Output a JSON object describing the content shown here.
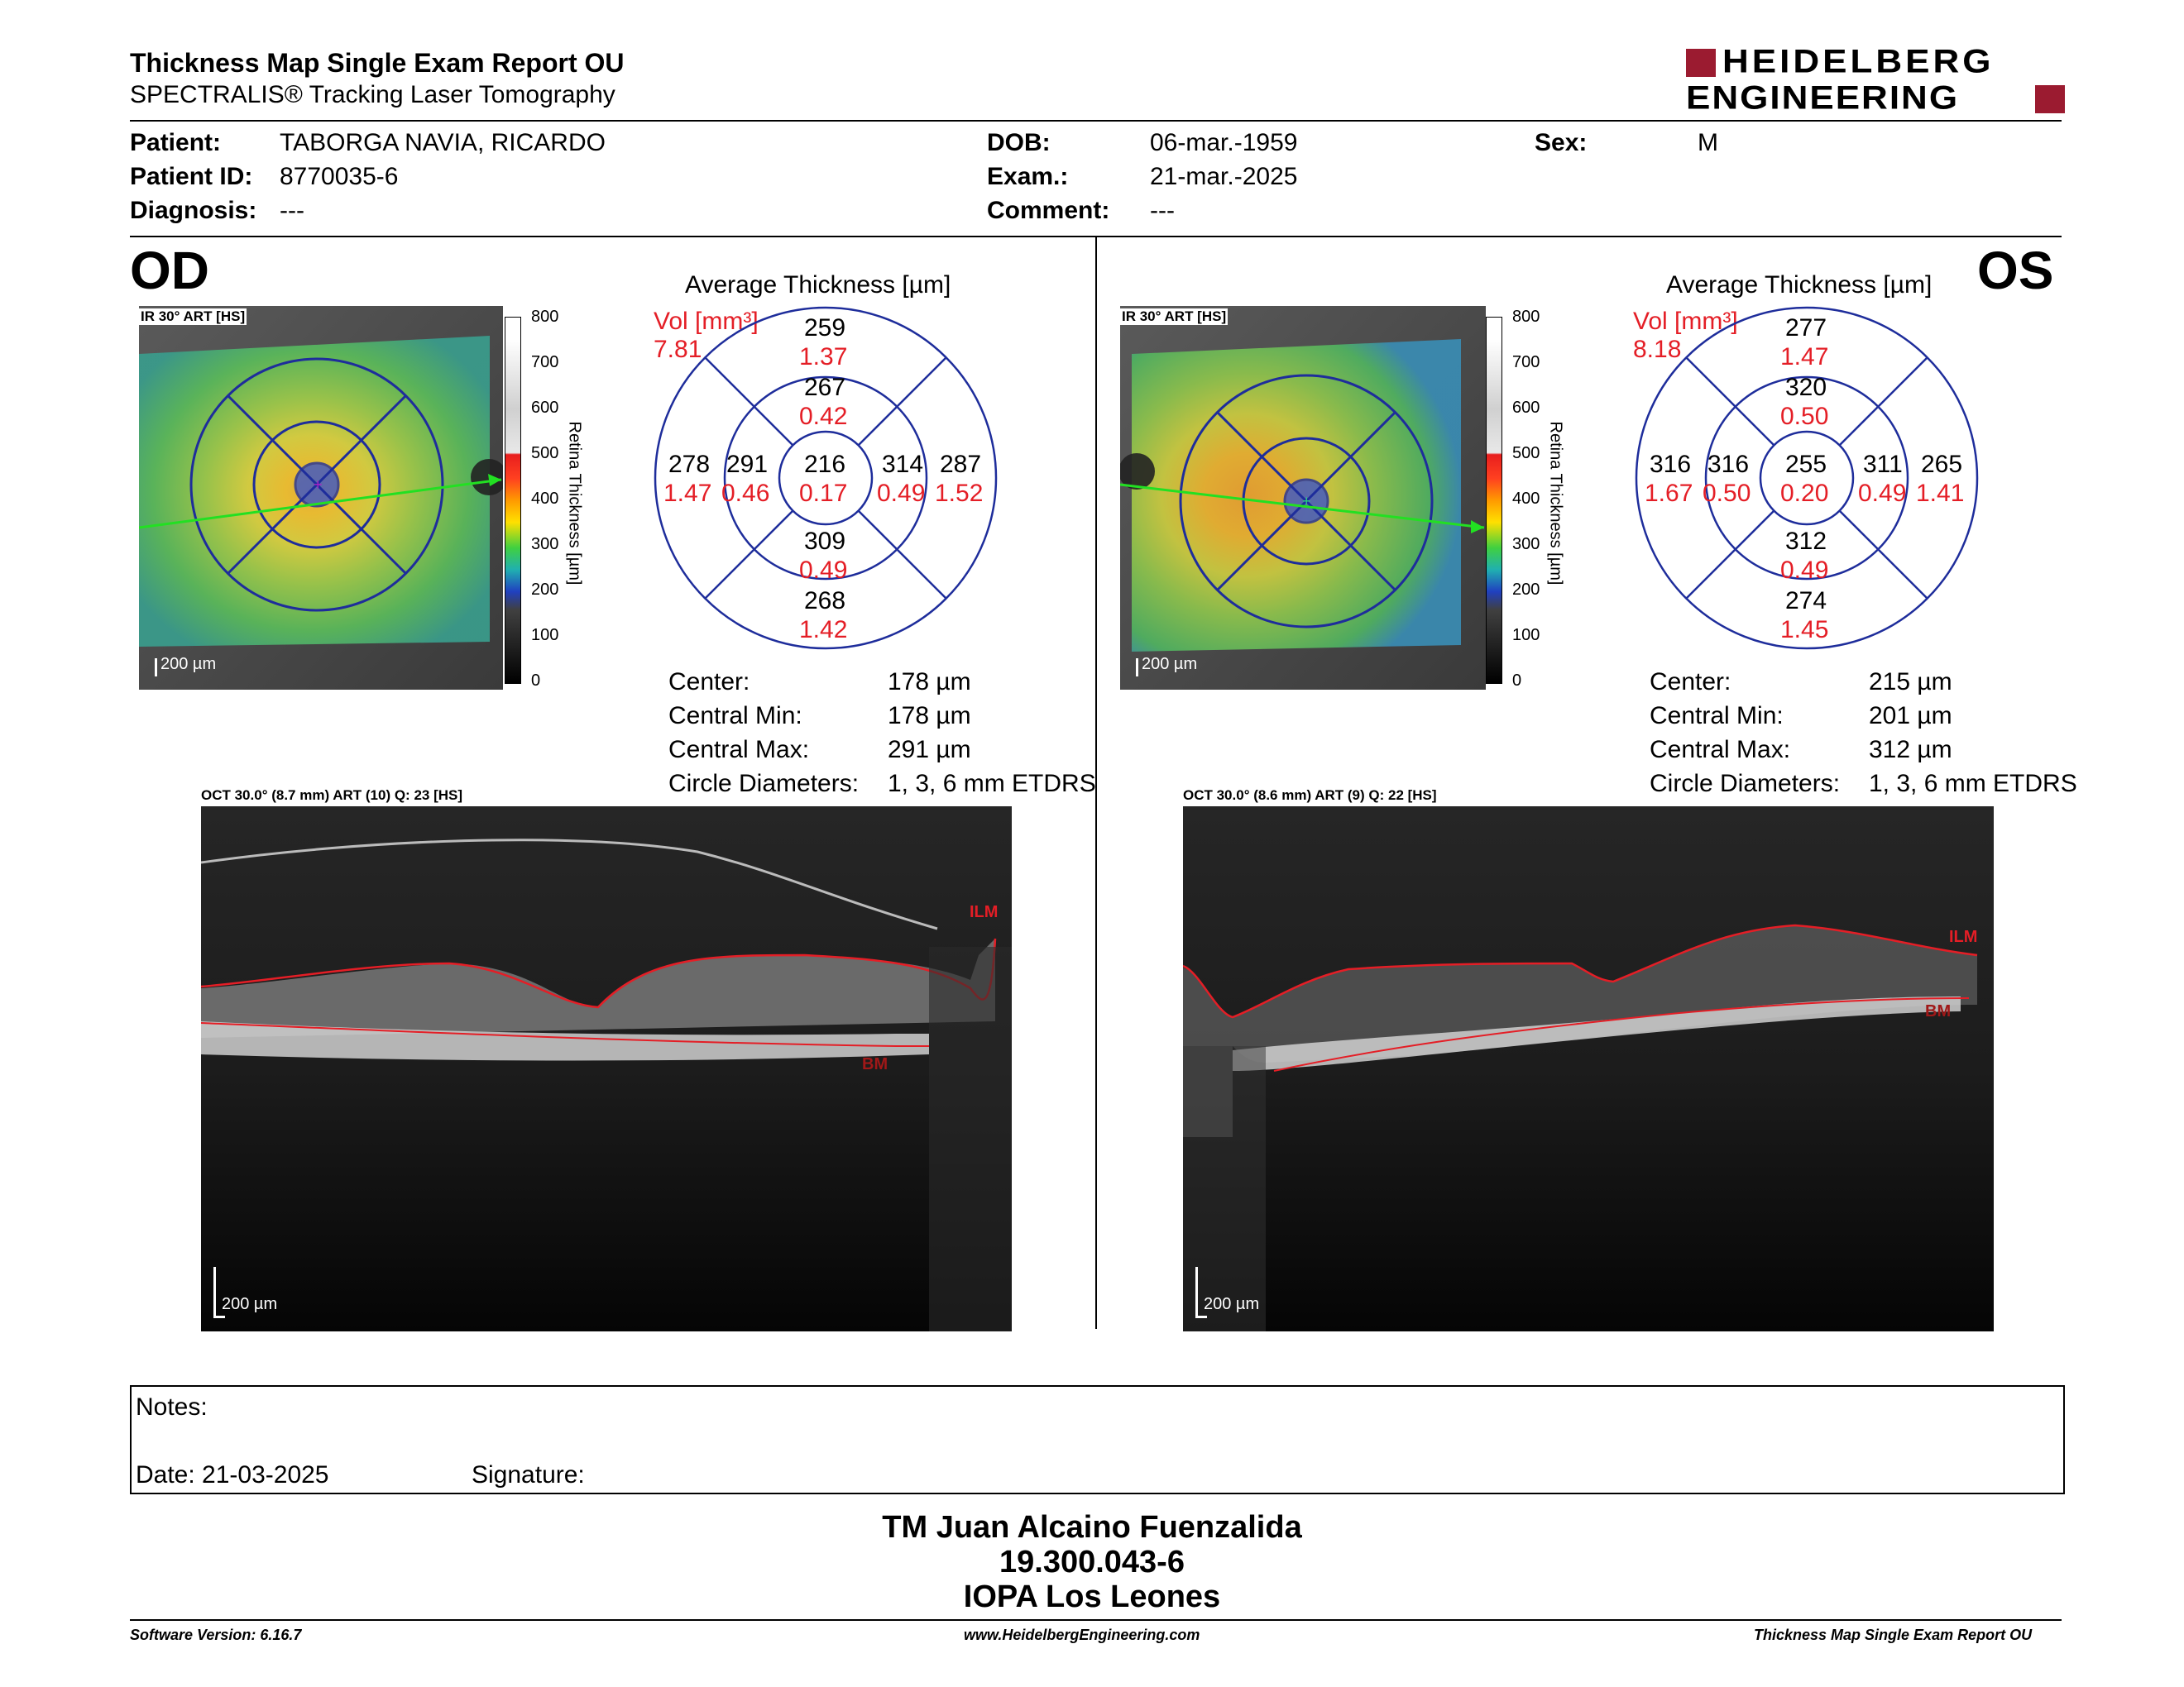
{
  "header": {
    "title": "Thickness Map Single Exam Report OU",
    "subtitle": "SPECTRALIS® Tracking Laser Tomography",
    "logo_line1": "HEIDELBERG",
    "logo_line2": "ENGINEERING"
  },
  "patient": {
    "patient_label": "Patient:",
    "patient_value": "TABORGA NAVIA, RICARDO",
    "id_label": "Patient ID:",
    "id_value": "8770035-6",
    "diagnosis_label": "Diagnosis:",
    "diagnosis_value": "---",
    "dob_label": "DOB:",
    "dob_value": "06-mar.-1959",
    "exam_label": "Exam.:",
    "exam_value": "21-mar.-2025",
    "comment_label": "Comment:",
    "comment_value": "---",
    "sex_label": "Sex:",
    "sex_value": "M"
  },
  "scale": {
    "ticks": [
      "800",
      "700",
      "600",
      "500",
      "400",
      "300",
      "200",
      "100",
      "0"
    ],
    "axis_label": "Retina Thickness [µm]"
  },
  "od": {
    "eye": "OD",
    "ir_label": "IR 30° ART [HS]",
    "ir_scale": "200 µm",
    "avg_title": "Average Thickness [µm]",
    "vol_label": "Vol [mm³]",
    "vol_total": "7.81",
    "sectors": {
      "center": [
        "216",
        "0.17"
      ],
      "inner_sup": [
        "267",
        "0.42"
      ],
      "inner_inf": [
        "309",
        "0.49"
      ],
      "inner_left": [
        "291",
        "0.46"
      ],
      "inner_right": [
        "314",
        "0.49"
      ],
      "outer_sup": [
        "259",
        "1.37"
      ],
      "outer_inf": [
        "268",
        "1.42"
      ],
      "outer_left": [
        "278",
        "1.47"
      ],
      "outer_right": [
        "287",
        "1.52"
      ]
    },
    "stats": [
      {
        "label": "Center:",
        "value": "178 µm"
      },
      {
        "label": "Central Min:",
        "value": "178 µm"
      },
      {
        "label": "Central Max:",
        "value": "291 µm"
      },
      {
        "label": "Circle Diameters:",
        "value": "1, 3, 6 mm ETDRS"
      }
    ],
    "oct_label": "OCT 30.0° (8.7 mm) ART (10) Q: 23 [HS]",
    "oct_scale": "200 µm",
    "ilm": "ILM",
    "bm": "BM"
  },
  "os": {
    "eye": "OS",
    "ir_label": "IR 30° ART [HS]",
    "ir_scale": "200 µm",
    "avg_title": "Average Thickness [µm]",
    "vol_label": "Vol [mm³]",
    "vol_total": "8.18",
    "sectors": {
      "center": [
        "255",
        "0.20"
      ],
      "inner_sup": [
        "320",
        "0.50"
      ],
      "inner_inf": [
        "312",
        "0.49"
      ],
      "inner_left": [
        "316",
        "0.50"
      ],
      "inner_right": [
        "311",
        "0.49"
      ],
      "outer_sup": [
        "277",
        "1.47"
      ],
      "outer_inf": [
        "274",
        "1.45"
      ],
      "outer_left": [
        "316",
        "1.67"
      ],
      "outer_right": [
        "265",
        "1.41"
      ]
    },
    "stats": [
      {
        "label": "Center:",
        "value": "215 µm"
      },
      {
        "label": "Central Min:",
        "value": "201 µm"
      },
      {
        "label": "Central Max:",
        "value": "312 µm"
      },
      {
        "label": "Circle Diameters:",
        "value": "1, 3, 6 mm ETDRS"
      }
    ],
    "oct_label": "OCT 30.0° (8.6 mm) ART (9) Q: 22 [HS]",
    "oct_scale": "200 µm",
    "ilm": "ILM",
    "bm": "BM"
  },
  "notes": {
    "notes_label": "Notes:",
    "date_label": "Date: 21-03-2025",
    "signature_label": "Signature:"
  },
  "signature": {
    "line1": "TM Juan Alcaino Fuenzalida",
    "line2": "19.300.043-6",
    "line3": "IOPA Los Leones"
  },
  "footer": {
    "version": "Software Version: 6.16.7",
    "website": "www.HeidelbergEngineering.com",
    "report": "Thickness Map Single Exam Report OU"
  },
  "colors": {
    "red_text": "#e41e26",
    "brand": "#9b1b30",
    "grid_blue": "#1e2d9b"
  }
}
